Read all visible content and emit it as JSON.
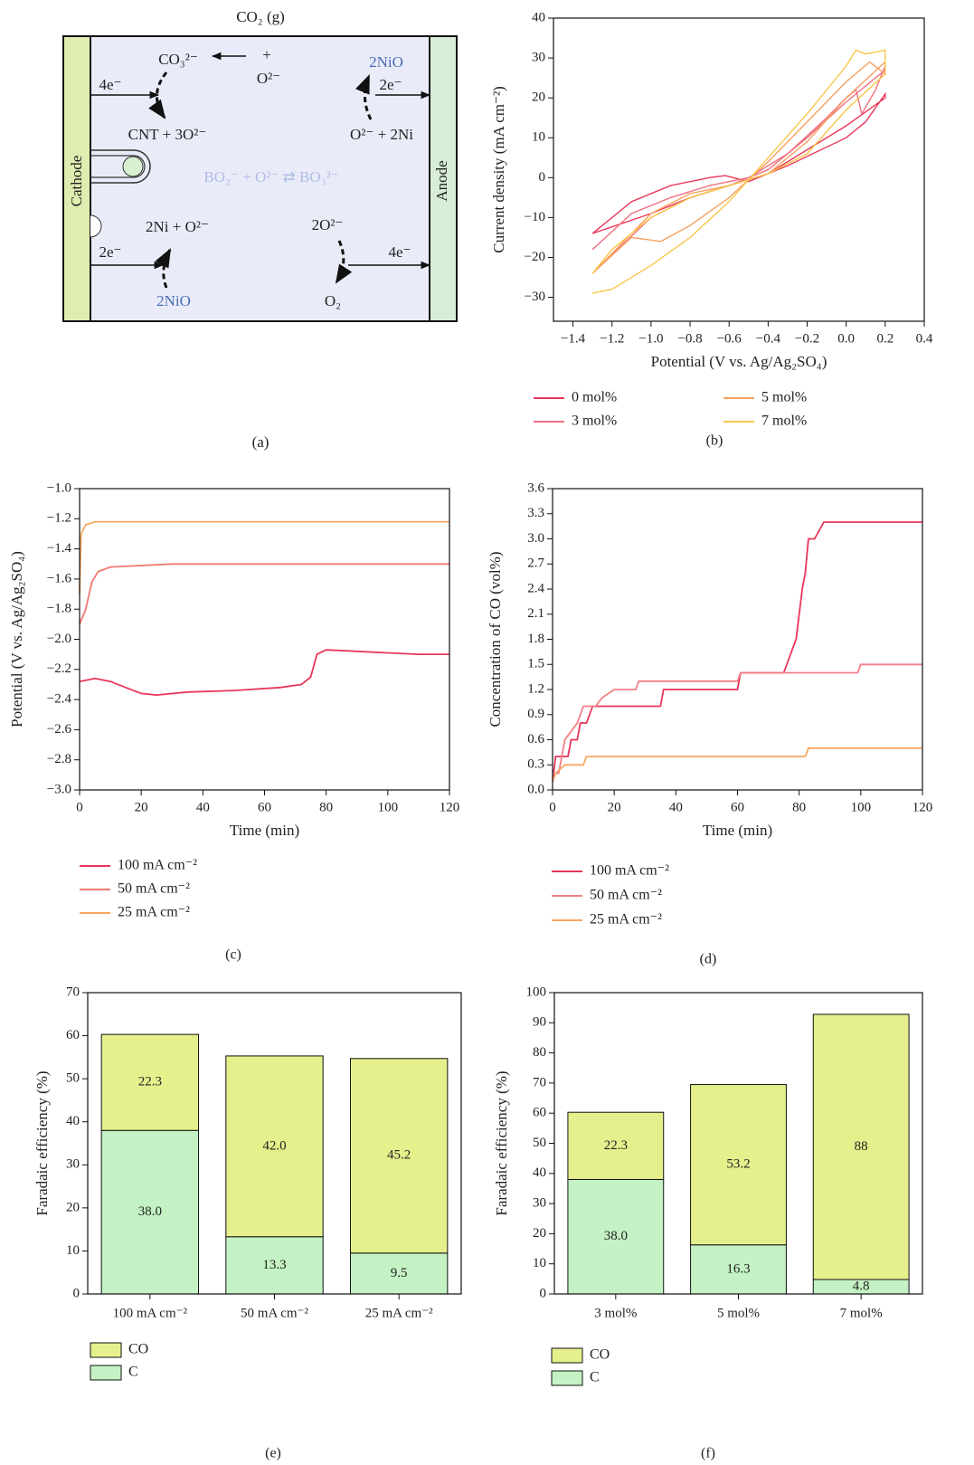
{
  "diagram": {
    "panel_label": "(a)",
    "labels": [
      "CO₂ (g)",
      "CO₃²⁻",
      "+",
      "O²⁻",
      "2NiO",
      "4e⁻",
      "2e⁻",
      "CNT + 3O²⁻",
      "O²⁻ + 2Ni",
      "Cathode",
      "Anode",
      "BO₂⁻ + O²⁻ ⇄ BO₃³⁻",
      "2Ni + O²⁻",
      "2O²⁻",
      "2e⁻",
      "4e⁻",
      "2NiO",
      "O₂"
    ]
  },
  "chart_data": [
    {
      "type": "line",
      "panel_label": "(b)",
      "xlabel": "Potential (V vs. Ag/Ag₂SO₄)",
      "ylabel": "Current density (mA cm⁻²)",
      "xlim": [
        -1.5,
        0.4
      ],
      "ylim": [
        -36,
        40
      ],
      "xticks": [
        {
          "value": -1.4,
          "label": "−1.4"
        },
        {
          "value": -1.2,
          "label": "−1.2"
        },
        {
          "value": -1.0,
          "label": "−1.0"
        },
        {
          "value": -0.8,
          "label": "−0.8"
        },
        {
          "value": -0.6,
          "label": "−0.6"
        },
        {
          "value": -0.4,
          "label": "−0.4"
        },
        {
          "value": -0.2,
          "label": "−0.2"
        },
        {
          "value": 0,
          "label": "0.0"
        },
        0.2,
        0.4
      ],
      "yticks": [
        {
          "value": -30,
          "label": "−30"
        },
        {
          "value": -20,
          "label": "−20"
        },
        {
          "value": -10,
          "label": "−10"
        },
        0,
        10,
        20,
        30,
        40
      ],
      "series": [
        {
          "name": "0 mol%",
          "color": "#e8365a",
          "x": [
            -1.3,
            -1.1,
            -0.9,
            -0.7,
            -0.62,
            -0.5,
            -0.3,
            0,
            0.1,
            0.2,
            0.2,
            0,
            -0.2,
            -0.4,
            -0.6,
            -0.8,
            -1.0,
            -1.3
          ],
          "values": [
            -14,
            -6,
            -2,
            0,
            0.5,
            -1,
            3,
            10,
            14,
            21,
            20,
            13,
            7,
            1,
            -2,
            -5,
            -9,
            -14
          ]
        },
        {
          "name": "3 mol%",
          "color": "#f07080",
          "x": [
            -1.3,
            -1.1,
            -0.9,
            -0.7,
            -0.5,
            -0.3,
            -0.1,
            0,
            0.05,
            0.08,
            0.15,
            0.2,
            0.2,
            0,
            -0.2,
            -0.4,
            -0.6,
            -0.8,
            -1.0,
            -1.3
          ],
          "values": [
            -18,
            -9,
            -5,
            -2,
            0,
            6,
            15,
            20,
            22,
            16,
            22,
            28,
            27,
            19,
            10,
            2,
            -2,
            -5,
            -10,
            -24
          ]
        },
        {
          "name": "5 mol%",
          "color": "#f7a060",
          "x": [
            -1.3,
            -1.1,
            -0.95,
            -0.8,
            -0.6,
            -0.4,
            -0.2,
            0,
            0.12,
            0.2,
            0.2,
            0,
            -0.2,
            -0.4,
            -0.6,
            -0.8,
            -1.0,
            -1.3
          ],
          "values": [
            -24,
            -15,
            -16,
            -12,
            -5,
            4,
            14,
            24,
            29,
            26,
            29,
            20,
            9,
            1,
            -2,
            -4,
            -9,
            -24
          ]
        },
        {
          "name": "7 mol%",
          "color": "#f9c64a",
          "x": [
            -1.3,
            -1.2,
            -1.0,
            -0.8,
            -0.6,
            -0.4,
            -0.2,
            0,
            0.05,
            0.1,
            0.2,
            0.2,
            0,
            -0.2,
            -0.4,
            -0.6,
            -0.8,
            -1.0,
            -1.2,
            -1.3
          ],
          "values": [
            -29,
            -28,
            -22,
            -15,
            -6,
            5,
            16,
            28,
            32,
            31,
            32,
            26,
            17,
            6,
            1,
            -2,
            -5,
            -10,
            -18,
            -24
          ]
        }
      ]
    },
    {
      "type": "line",
      "panel_label": "(c)",
      "xlabel": "Time (min)",
      "ylabel": "Potential (V vs. Ag/Ag₂SO₄)",
      "xlim": [
        0,
        120
      ],
      "ylim": [
        -3.0,
        -1.0
      ],
      "xticks": [
        0,
        20,
        40,
        60,
        80,
        100,
        120
      ],
      "yticks": [
        {
          "value": -3.0,
          "label": "−3.0"
        },
        {
          "value": -2.8,
          "label": "−2.8"
        },
        {
          "value": -2.6,
          "label": "−2.6"
        },
        {
          "value": -2.4,
          "label": "−2.4"
        },
        {
          "value": -2.2,
          "label": "−2.2"
        },
        {
          "value": -2.0,
          "label": "−2.0"
        },
        {
          "value": -1.8,
          "label": "−1.8"
        },
        {
          "value": -1.6,
          "label": "−1.6"
        },
        {
          "value": -1.4,
          "label": "−1.4"
        },
        {
          "value": -1.2,
          "label": "−1.2"
        },
        {
          "value": -1.0,
          "label": "−1.0"
        }
      ],
      "series": [
        {
          "name": "100 mA cm⁻²",
          "color": "#e8365a",
          "x": [
            0,
            5,
            10,
            15,
            20,
            25,
            35,
            50,
            65,
            72,
            75,
            77,
            80,
            90,
            100,
            110,
            120
          ],
          "values": [
            -2.28,
            -2.26,
            -2.28,
            -2.32,
            -2.36,
            -2.37,
            -2.35,
            -2.34,
            -2.32,
            -2.3,
            -2.25,
            -2.1,
            -2.07,
            -2.08,
            -2.09,
            -2.1,
            -2.1
          ]
        },
        {
          "name": "50 mA cm⁻²",
          "color": "#f07a70",
          "x": [
            0,
            2,
            4,
            6,
            10,
            30,
            60,
            120
          ],
          "values": [
            -1.9,
            -1.8,
            -1.62,
            -1.55,
            -1.52,
            -1.5,
            -1.5,
            -1.5
          ]
        },
        {
          "name": "25 mA cm⁻²",
          "color": "#f8a860",
          "x": [
            0,
            0.5,
            2,
            5,
            120
          ],
          "values": [
            -1.7,
            -1.3,
            -1.24,
            -1.22,
            -1.22
          ]
        }
      ]
    },
    {
      "type": "line",
      "panel_label": "(d)",
      "xlabel": "Time (min)",
      "ylabel": "Concentration of CO (vol%)",
      "xlim": [
        0,
        120
      ],
      "ylim": [
        0,
        3.6
      ],
      "xticks": [
        0,
        20,
        40,
        60,
        80,
        100,
        120
      ],
      "yticks": [
        {
          "value": 0,
          "label": "0.0"
        },
        0.3,
        0.6,
        0.9,
        1.2,
        1.5,
        1.8,
        2.1,
        2.4,
        2.7,
        {
          "value": 3,
          "label": "3.0"
        },
        3.3,
        3.6
      ],
      "series": [
        {
          "name": "100 mA cm⁻²",
          "color": "#e8365a",
          "x": [
            0,
            1,
            5,
            6,
            8,
            9,
            11,
            13,
            35,
            36,
            60,
            61,
            75,
            77,
            79,
            81,
            82,
            83,
            85,
            88,
            120
          ],
          "values": [
            0.1,
            0.4,
            0.4,
            0.6,
            0.6,
            0.8,
            0.8,
            1.0,
            1.0,
            1.2,
            1.2,
            1.4,
            1.4,
            1.6,
            1.8,
            2.4,
            2.6,
            3.0,
            3.0,
            3.2,
            3.2
          ]
        },
        {
          "name": "50 mA cm⁻²",
          "color": "#f27f86",
          "x": [
            0,
            2,
            4,
            8,
            10,
            14,
            16,
            20,
            27,
            28,
            60,
            61,
            99,
            100,
            120
          ],
          "values": [
            0.2,
            0.2,
            0.6,
            0.8,
            1.0,
            1.0,
            1.1,
            1.2,
            1.2,
            1.3,
            1.3,
            1.4,
            1.4,
            1.5,
            1.5
          ]
        },
        {
          "name": "25 mA cm⁻²",
          "color": "#f8a860",
          "x": [
            0,
            1,
            4,
            10,
            11,
            82,
            83,
            120
          ],
          "values": [
            0.1,
            0.2,
            0.3,
            0.3,
            0.4,
            0.4,
            0.5,
            0.5
          ]
        }
      ]
    },
    {
      "type": "bar",
      "panel_label": "(e)",
      "ylabel": "Faradaic efficiency (%)",
      "categories": [
        "100 mA cm⁻²",
        "50 mA cm⁻²",
        "25 mA cm⁻²"
      ],
      "ylim": [
        0,
        70
      ],
      "yticks": [
        0,
        10,
        20,
        30,
        40,
        50,
        60,
        70
      ],
      "series": [
        {
          "name": "C",
          "color": "#c4f2c4",
          "values": [
            38.0,
            13.3,
            9.5
          ],
          "value_labels": [
            "38.0",
            "13.3",
            "9.5"
          ]
        },
        {
          "name": "CO",
          "color": "#e5f08c",
          "values": [
            22.3,
            42.0,
            45.2
          ],
          "value_labels": [
            "22.3",
            "42.0",
            "45.2"
          ]
        }
      ]
    },
    {
      "type": "bar",
      "panel_label": "(f)",
      "ylabel": "Faradaic efficiency (%)",
      "categories": [
        "3 mol%",
        "5 mol%",
        "7 mol%"
      ],
      "ylim": [
        0,
        100
      ],
      "yticks": [
        0,
        10,
        20,
        30,
        40,
        50,
        60,
        70,
        80,
        90,
        100
      ],
      "series": [
        {
          "name": "C",
          "color": "#c4f2c4",
          "values": [
            38.0,
            16.3,
            4.8
          ],
          "value_labels": [
            "38.0",
            "16.3",
            "4.8"
          ]
        },
        {
          "name": "CO",
          "color": "#e5f08c",
          "values": [
            22.3,
            53.2,
            88
          ],
          "value_labels": [
            "22.3",
            "53.2",
            "88"
          ]
        }
      ]
    }
  ]
}
